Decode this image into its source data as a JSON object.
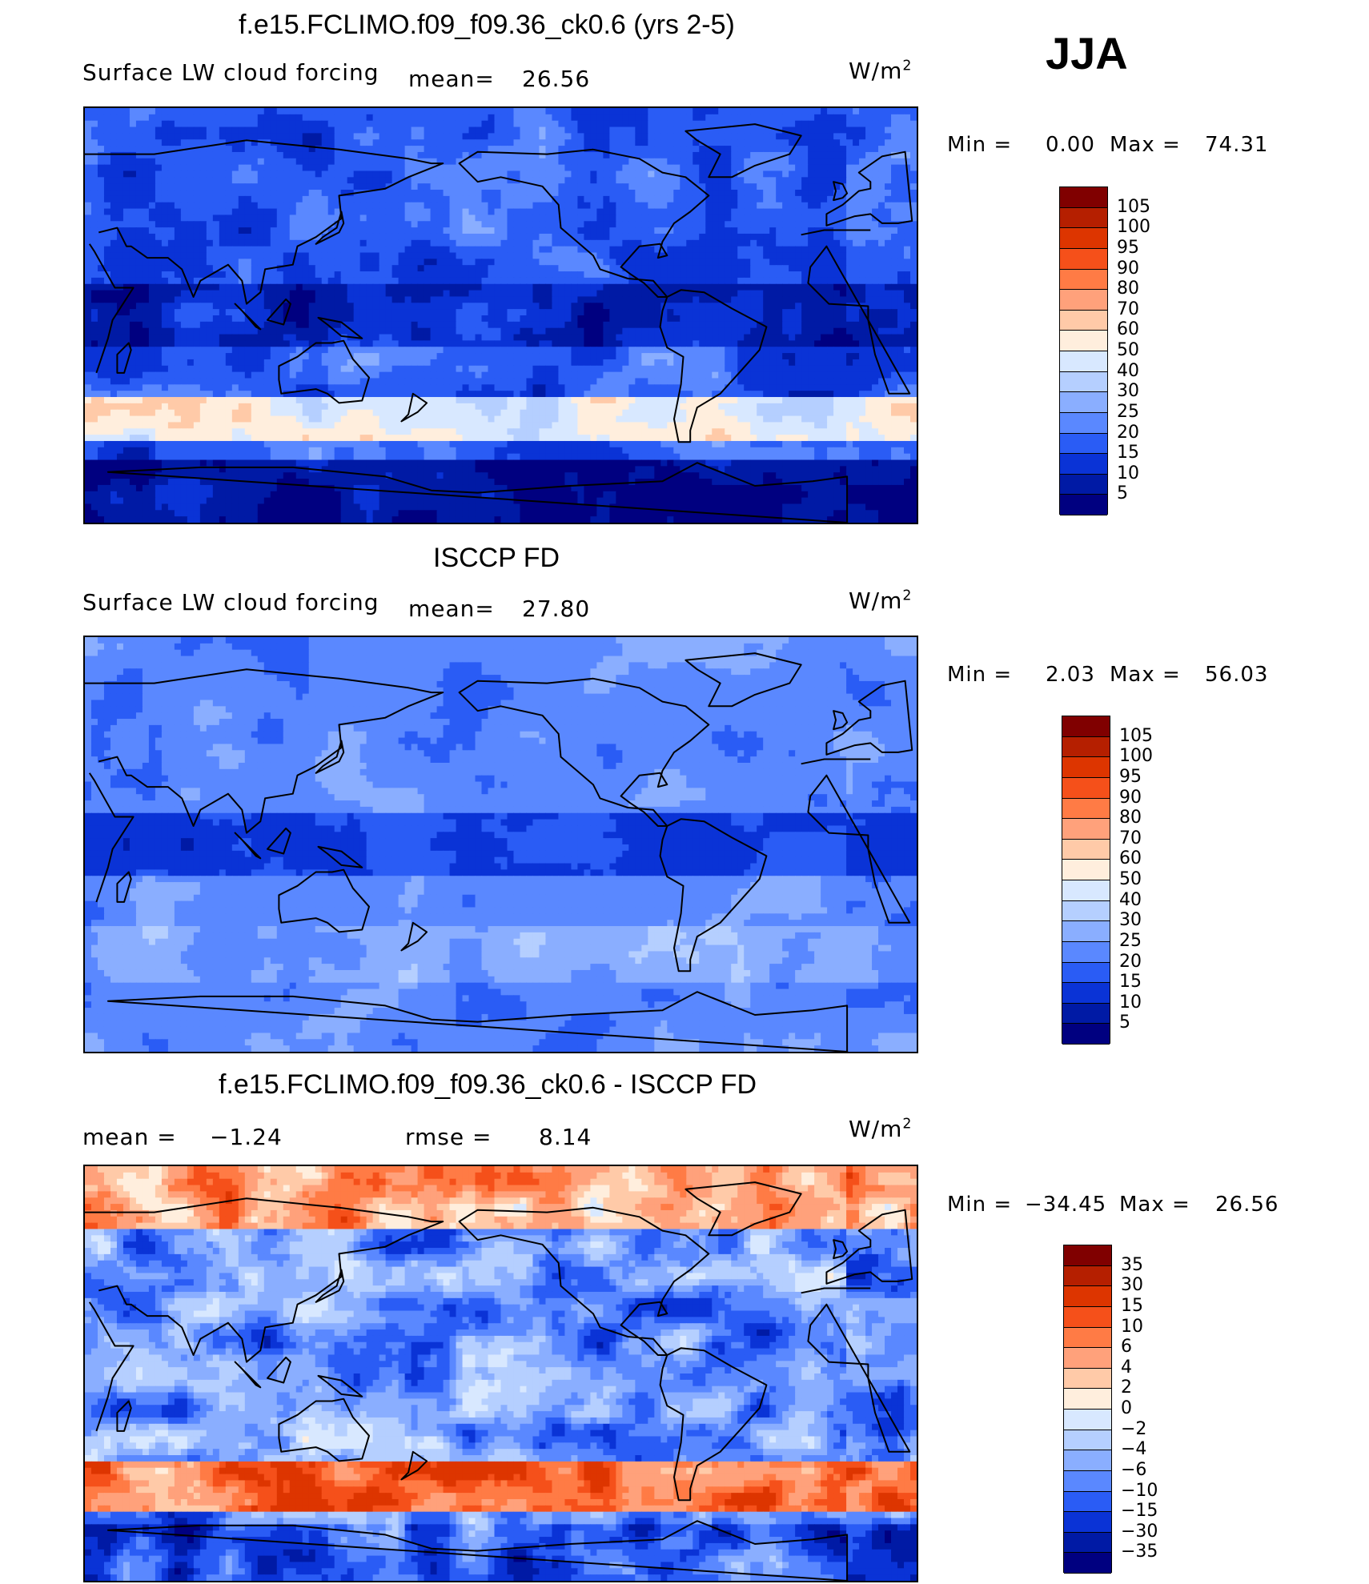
{
  "season": "JJA",
  "units": "W/m",
  "units_exp": "2",
  "panels": [
    {
      "title": "f.e15.FCLIMO.f09_f09.36_ck0.6 (yrs 2-5)",
      "subtitle": "Surface LW cloud forcing",
      "mean_label": "mean=",
      "mean_value": "26.56",
      "min_label": "Min =",
      "min_value": "0.00",
      "max_label": "Max =",
      "max_value": "74.31",
      "colorbar": {
        "levels": [
          "105",
          "100",
          "95",
          "90",
          "80",
          "70",
          "60",
          "50",
          "40",
          "30",
          "25",
          "20",
          "15",
          "10",
          "5"
        ],
        "colors": [
          "#800000",
          "#b51f00",
          "#dd3500",
          "#f5501a",
          "#ff7b45",
          "#ffa17b",
          "#ffcaa8",
          "#ffeedd",
          "#d8e8ff",
          "#b5cfff",
          "#8aaeff",
          "#5a88ff",
          "#2a5cf5",
          "#0a33d6",
          "#001aa5",
          "#000080"
        ]
      },
      "palette": [
        "#000080",
        "#001aa5",
        "#0a33d6",
        "#2a5cf5",
        "#5a88ff",
        "#8aaeff",
        "#b5cfff",
        "#d8e8ff",
        "#ffeedd",
        "#ffcaa8"
      ],
      "field": "model"
    },
    {
      "title": "ISCCP FD",
      "subtitle": "Surface LW cloud forcing",
      "mean_label": "mean=",
      "mean_value": "27.80",
      "min_label": "Min =",
      "min_value": "2.03",
      "max_label": "Max =",
      "max_value": "56.03",
      "colorbar": {
        "levels": [
          "105",
          "100",
          "95",
          "90",
          "80",
          "70",
          "60",
          "50",
          "40",
          "30",
          "25",
          "20",
          "15",
          "10",
          "5"
        ],
        "colors": [
          "#800000",
          "#b51f00",
          "#dd3500",
          "#f5501a",
          "#ff7b45",
          "#ffa17b",
          "#ffcaa8",
          "#ffeedd",
          "#d8e8ff",
          "#b5cfff",
          "#8aaeff",
          "#5a88ff",
          "#2a5cf5",
          "#0a33d6",
          "#001aa5",
          "#000080"
        ]
      },
      "field": "obs"
    },
    {
      "title": "f.e15.FCLIMO.f09_f09.36_ck0.6 - ISCCP FD",
      "mean_label": "mean =",
      "mean_value": "−1.24",
      "rmse_label": "rmse =",
      "rmse_value": "8.14",
      "min_label": "Min =",
      "min_value": "−34.45",
      "max_label": "Max =",
      "max_value": "26.56",
      "colorbar": {
        "levels": [
          "35",
          "30",
          "15",
          "10",
          "6",
          "4",
          "2",
          "0",
          "−2",
          "−4",
          "−6",
          "−10",
          "−15",
          "−30",
          "−35"
        ],
        "colors": [
          "#800000",
          "#b51f00",
          "#dd3500",
          "#f5501a",
          "#ff7b45",
          "#ffa17b",
          "#ffcaa8",
          "#ffeedd",
          "#d8e8ff",
          "#b5cfff",
          "#8aaeff",
          "#5a88ff",
          "#2a5cf5",
          "#0a33d6",
          "#001aa5",
          "#000080"
        ]
      },
      "field": "diff"
    }
  ]
}
